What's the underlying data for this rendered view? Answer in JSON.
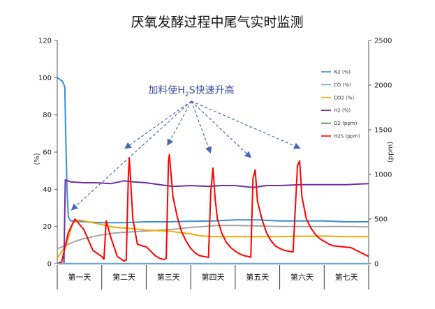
{
  "chart_data": {
    "type": "line",
    "title": "厌氧发酵过程中尾气实时监测",
    "ylabel_left": "(%)",
    "ylabel_right": "(ppm)",
    "ylim_left": [
      0,
      120
    ],
    "ylim_right": [
      0,
      2500
    ],
    "yticks_left": [
      "0",
      "20",
      "40",
      "60",
      "80",
      "100",
      "120"
    ],
    "yticks_right": [
      "0",
      "500",
      "1000",
      "1500",
      "2000",
      "2500"
    ],
    "x_days": [
      "第一天",
      "第二天",
      "第三天",
      "第四天",
      "第五天",
      "第六天",
      "第七天"
    ],
    "xlim_days": [
      0,
      7
    ],
    "annotation": {
      "prefix": "加料使H",
      "sub": "2",
      "suffix": "S快速升高"
    },
    "grid": false,
    "legend_position": "right",
    "series": [
      {
        "name": "N2 (%)",
        "axis": "left",
        "color": "#3a8fd4",
        "points": [
          [
            0,
            100
          ],
          [
            0.12,
            98
          ],
          [
            0.17,
            95
          ],
          [
            0.19,
            70
          ],
          [
            0.22,
            40
          ],
          [
            0.25,
            25
          ],
          [
            0.3,
            23
          ],
          [
            0.6,
            22.5
          ],
          [
            1,
            22
          ],
          [
            1.5,
            22
          ],
          [
            2,
            22.5
          ],
          [
            2.5,
            22.5
          ],
          [
            3,
            22.8
          ],
          [
            3.5,
            23
          ],
          [
            4,
            23.5
          ],
          [
            4.5,
            23.5
          ],
          [
            5,
            23
          ],
          [
            5.5,
            23
          ],
          [
            6,
            23
          ],
          [
            6.5,
            22.5
          ],
          [
            7,
            22.5
          ]
        ]
      },
      {
        "name": "CO (%)",
        "axis": "left",
        "color": "#6aa8dd",
        "points": [
          [
            0,
            0
          ],
          [
            7,
            0
          ]
        ]
      },
      {
        "name": "CO2 (%)",
        "axis": "left",
        "color": "#f5a800",
        "points": [
          [
            0,
            3
          ],
          [
            0.2,
            10
          ],
          [
            0.35,
            22
          ],
          [
            0.5,
            23.5
          ],
          [
            0.8,
            22
          ],
          [
            1,
            21
          ],
          [
            1.3,
            19.5
          ],
          [
            1.6,
            19
          ],
          [
            2,
            18
          ],
          [
            2.5,
            17.5
          ],
          [
            3,
            16
          ],
          [
            3.2,
            15
          ],
          [
            3.5,
            14.5
          ],
          [
            4,
            14.5
          ],
          [
            4.5,
            14.5
          ],
          [
            5,
            14.5
          ],
          [
            5.5,
            14.7
          ],
          [
            6,
            14.8
          ],
          [
            6.5,
            14.5
          ],
          [
            7,
            14.5
          ]
        ]
      },
      {
        "name": "H2 (%)",
        "axis": "left",
        "color": "#7030a0",
        "points": [
          [
            0,
            0
          ],
          [
            0.15,
            0
          ],
          [
            0.18,
            45
          ],
          [
            0.3,
            44
          ],
          [
            0.6,
            43.5
          ],
          [
            0.9,
            43.5
          ],
          [
            1.2,
            43
          ],
          [
            1.5,
            44.5
          ],
          [
            1.7,
            44
          ],
          [
            2,
            43.5
          ],
          [
            2.3,
            42.5
          ],
          [
            2.6,
            41.5
          ],
          [
            3,
            42
          ],
          [
            3.4,
            41.5
          ],
          [
            3.7,
            42
          ],
          [
            4,
            42
          ],
          [
            4.4,
            41
          ],
          [
            4.7,
            42
          ],
          [
            5,
            42
          ],
          [
            5.5,
            42.5
          ],
          [
            6,
            42.5
          ],
          [
            6.5,
            42.5
          ],
          [
            7,
            43
          ]
        ]
      },
      {
        "name": "O2 (ppm)",
        "axis": "right",
        "color": "#2e8b2e",
        "points": [
          [
            0,
            0
          ],
          [
            7,
            0
          ]
        ]
      },
      {
        "name": "H2S (ppm)",
        "axis": "right",
        "color": "#ff0000",
        "points": [
          [
            0,
            0
          ],
          [
            0.1,
            20
          ],
          [
            0.25,
            350
          ],
          [
            0.4,
            500
          ],
          [
            0.6,
            380
          ],
          [
            0.8,
            150
          ],
          [
            1,
            80
          ],
          [
            1.05,
            50
          ],
          [
            1.1,
            480
          ],
          [
            1.2,
            300
          ],
          [
            1.35,
            80
          ],
          [
            1.5,
            30
          ],
          [
            1.55,
            40
          ],
          [
            1.6,
            1000
          ],
          [
            1.62,
            1180
          ],
          [
            1.7,
            500
          ],
          [
            1.8,
            220
          ],
          [
            1.9,
            200
          ],
          [
            2,
            190
          ],
          [
            2.1,
            140
          ],
          [
            2.2,
            90
          ],
          [
            2.3,
            60
          ],
          [
            2.4,
            45
          ],
          [
            2.45,
            60
          ],
          [
            2.5,
            1150
          ],
          [
            2.52,
            1220
          ],
          [
            2.6,
            750
          ],
          [
            2.7,
            520
          ],
          [
            2.8,
            350
          ],
          [
            2.9,
            250
          ],
          [
            3,
            170
          ],
          [
            3.1,
            120
          ],
          [
            3.2,
            90
          ],
          [
            3.3,
            80
          ],
          [
            3.4,
            70
          ],
          [
            3.45,
            800
          ],
          [
            3.5,
            1070
          ],
          [
            3.55,
            720
          ],
          [
            3.6,
            500
          ],
          [
            3.7,
            340
          ],
          [
            3.8,
            240
          ],
          [
            3.9,
            180
          ],
          [
            4,
            140
          ],
          [
            4.1,
            110
          ],
          [
            4.2,
            90
          ],
          [
            4.3,
            80
          ],
          [
            4.35,
            70
          ],
          [
            4.4,
            950
          ],
          [
            4.45,
            1050
          ],
          [
            4.5,
            700
          ],
          [
            4.6,
            500
          ],
          [
            4.7,
            350
          ],
          [
            4.8,
            260
          ],
          [
            4.9,
            200
          ],
          [
            5,
            170
          ],
          [
            5.1,
            150
          ],
          [
            5.2,
            140
          ],
          [
            5.3,
            130
          ],
          [
            5.4,
            1100
          ],
          [
            5.45,
            1150
          ],
          [
            5.5,
            750
          ],
          [
            5.6,
            500
          ],
          [
            5.7,
            400
          ],
          [
            5.8,
            330
          ],
          [
            5.9,
            280
          ],
          [
            6,
            250
          ],
          [
            6.1,
            220
          ],
          [
            6.2,
            200
          ],
          [
            6.4,
            190
          ],
          [
            6.6,
            180
          ],
          [
            6.8,
            130
          ],
          [
            7,
            80
          ]
        ]
      },
      {
        "name": "",
        "axis": "left",
        "color": "#a6a6a6",
        "points": [
          [
            0,
            8
          ],
          [
            0.2,
            10
          ],
          [
            0.4,
            12
          ],
          [
            0.6,
            13.5
          ],
          [
            0.8,
            14.5
          ],
          [
            1,
            15.5
          ],
          [
            1.3,
            16.5
          ],
          [
            1.6,
            17
          ],
          [
            2,
            17.5
          ],
          [
            2.3,
            18
          ],
          [
            2.6,
            18.5
          ],
          [
            3,
            19.5
          ],
          [
            3.3,
            20
          ],
          [
            3.6,
            20.5
          ],
          [
            4,
            20.5
          ],
          [
            4.5,
            20.3
          ],
          [
            5,
            20
          ],
          [
            5.5,
            20
          ],
          [
            6,
            20
          ],
          [
            6.5,
            20
          ],
          [
            7,
            19.8
          ]
        ]
      }
    ]
  },
  "colors": {
    "background": "#ffffff",
    "axis": "#555555",
    "annotation": "#3c4fa0",
    "arrow": "#4a66b8",
    "day_divider": "#333333"
  }
}
